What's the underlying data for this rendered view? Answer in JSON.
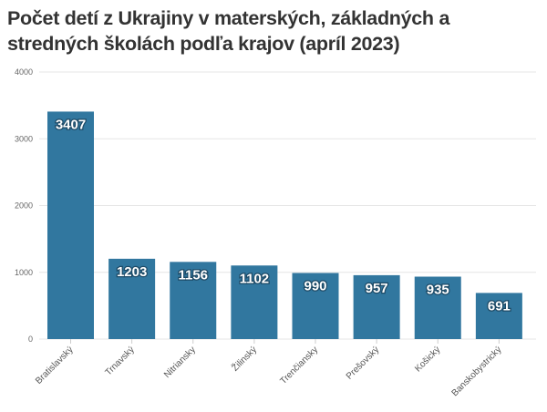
{
  "chart_data": {
    "type": "bar",
    "title": "Počet detí z Ukrajiny v materských, základných a stredných školách podľa krajov (apríl 2023)",
    "categories": [
      "Bratislavský",
      "Trnavský",
      "Nitriansky",
      "Žilinský",
      "Trenčiansky",
      "Prešovský",
      "Košický",
      "Banskobystrický"
    ],
    "values": [
      3407,
      1203,
      1156,
      1102,
      990,
      957,
      935,
      691
    ],
    "xlabel": "",
    "ylabel": "",
    "ylim": [
      0,
      4000
    ],
    "yticks": [
      0,
      1000,
      2000,
      3000,
      4000
    ],
    "grid": true,
    "bar_color": "#31779f"
  }
}
